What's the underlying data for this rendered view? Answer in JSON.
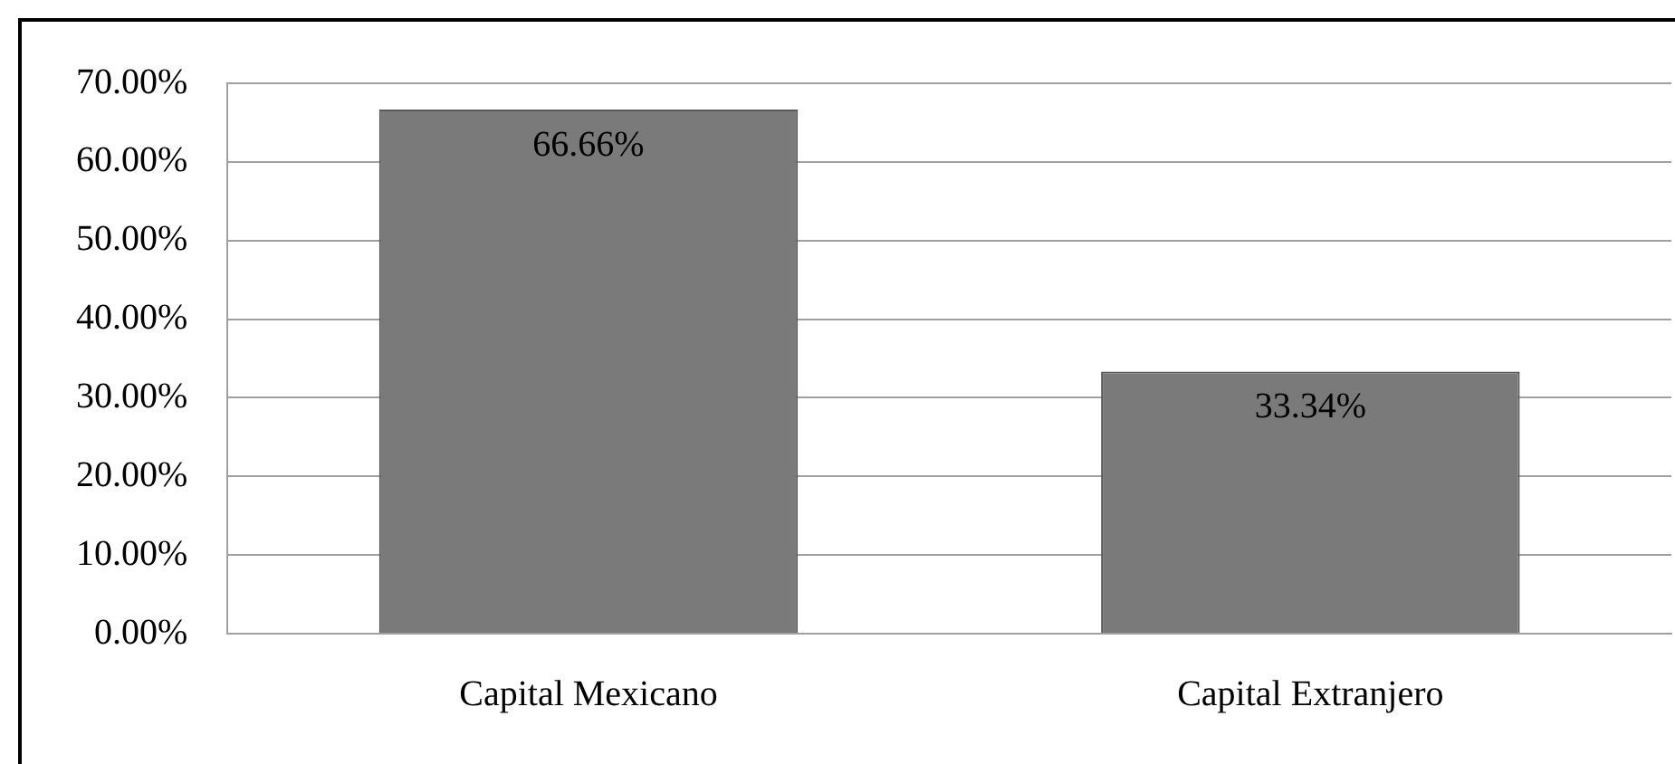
{
  "chart_data": {
    "type": "bar",
    "categories": [
      "Capital Mexicano",
      "Capital Extranjero"
    ],
    "values": [
      66.66,
      33.34
    ],
    "color": "#7a7a7a",
    "value_labels": [
      "66.66%",
      "33.34%"
    ],
    "ylim": [
      0,
      70
    ],
    "yticks": [
      {
        "value": 0,
        "label": "0.00%"
      },
      {
        "value": 10,
        "label": "10.00%"
      },
      {
        "value": 20,
        "label": "20.00%"
      },
      {
        "value": 30,
        "label": "30.00%"
      },
      {
        "value": 40,
        "label": "40.00%"
      },
      {
        "value": 50,
        "label": "50.00%"
      },
      {
        "value": 60,
        "label": "60.00%"
      },
      {
        "value": 70,
        "label": "70.00%"
      }
    ],
    "grid": "y",
    "legend": false
  }
}
